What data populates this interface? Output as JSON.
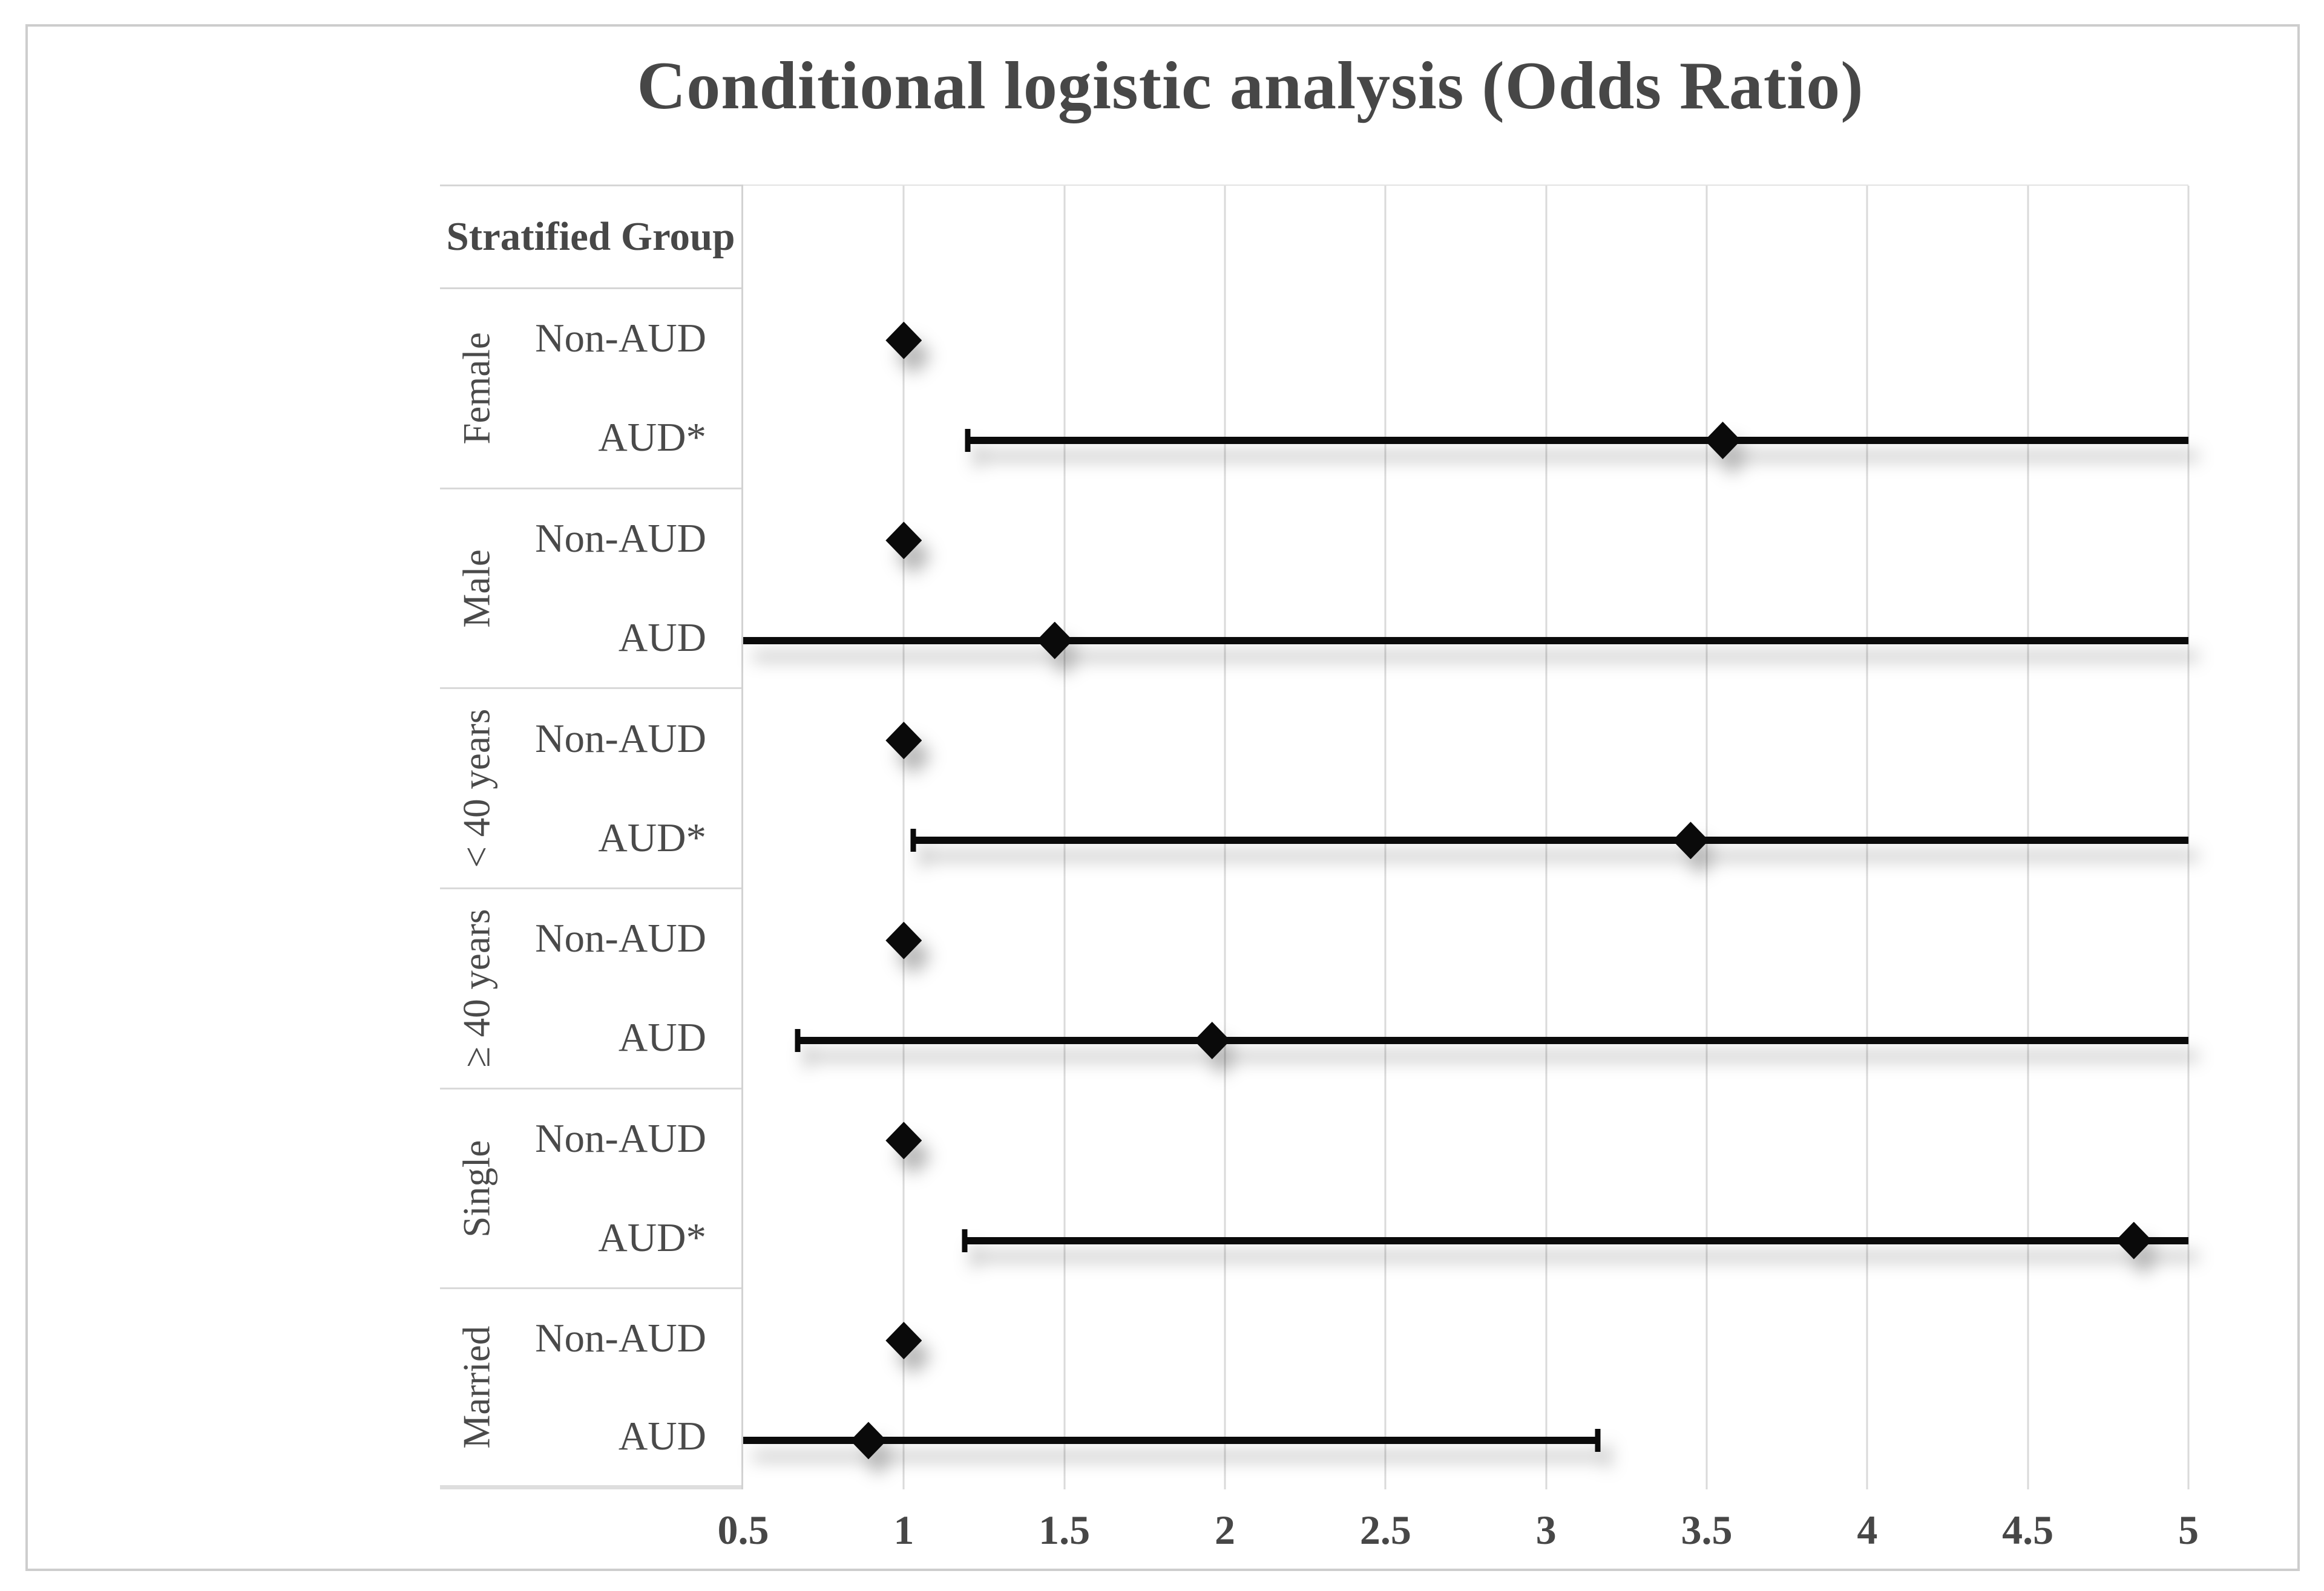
{
  "title": "Conditional logistic analysis (Odds Ratio)",
  "stratified_column": {
    "header": "Stratified Group"
  },
  "x_axis": {
    "tick_labels": [
      "0.5",
      "1",
      "1.5",
      "2",
      "2.5",
      "3",
      "3.5",
      "4",
      "4.5",
      "5"
    ]
  },
  "chart_data": {
    "type": "scatter",
    "subtype": "forest_plot_odds_ratio",
    "title": "Conditional logistic analysis (Odds Ratio)",
    "xlabel": "",
    "ylabel": "",
    "xlim": [
      0.5,
      5
    ],
    "x_ticks": [
      0.5,
      1,
      1.5,
      2,
      2.5,
      3,
      3.5,
      4,
      4.5,
      5
    ],
    "grid": "vertical-gridlines",
    "marker": "black-diamond",
    "legend": "none",
    "groups": [
      {
        "name": "Female",
        "rows": [
          {
            "label": "Non-AUD",
            "or": 1.0,
            "ci_low": null,
            "ci_high": null,
            "clip_low": false,
            "clip_high": false
          },
          {
            "label": "AUD*",
            "or": 3.55,
            "ci_low": 1.2,
            "ci_high": 5.0,
            "clip_low": false,
            "clip_high": true
          }
        ]
      },
      {
        "name": "Male",
        "rows": [
          {
            "label": "Non-AUD",
            "or": 1.0,
            "ci_low": null,
            "ci_high": null,
            "clip_low": false,
            "clip_high": false
          },
          {
            "label": "AUD",
            "or": 1.47,
            "ci_low": 0.5,
            "ci_high": 5.0,
            "clip_low": true,
            "clip_high": true
          }
        ]
      },
      {
        "name": "< 40 years",
        "rows": [
          {
            "label": "Non-AUD",
            "or": 1.0,
            "ci_low": null,
            "ci_high": null,
            "clip_low": false,
            "clip_high": false
          },
          {
            "label": "AUD*",
            "or": 3.45,
            "ci_low": 1.03,
            "ci_high": 5.0,
            "clip_low": false,
            "clip_high": true
          }
        ]
      },
      {
        "name": "≥ 40 years",
        "rows": [
          {
            "label": "Non-AUD",
            "or": 1.0,
            "ci_low": null,
            "ci_high": null,
            "clip_low": false,
            "clip_high": false
          },
          {
            "label": "AUD",
            "or": 1.96,
            "ci_low": 0.67,
            "ci_high": 5.0,
            "clip_low": false,
            "clip_high": true
          }
        ]
      },
      {
        "name": "Single",
        "rows": [
          {
            "label": "Non-AUD",
            "or": 1.0,
            "ci_low": null,
            "ci_high": null,
            "clip_low": false,
            "clip_high": false
          },
          {
            "label": "AUD*",
            "or": 4.83,
            "ci_low": 1.19,
            "ci_high": 5.0,
            "clip_low": false,
            "clip_high": true
          }
        ]
      },
      {
        "name": "Married",
        "rows": [
          {
            "label": "Non-AUD",
            "or": 1.0,
            "ci_low": null,
            "ci_high": null,
            "clip_low": false,
            "clip_high": false
          },
          {
            "label": "AUD",
            "or": 0.89,
            "ci_low": 0.5,
            "ci_high": 3.16,
            "clip_low": true,
            "clip_high": false
          }
        ]
      }
    ]
  },
  "colors": {
    "text": "#474747",
    "grid": "#dadada",
    "frame_border": "#cdcdcd",
    "marker": "#0a0a0a",
    "background": "#ffffff"
  }
}
